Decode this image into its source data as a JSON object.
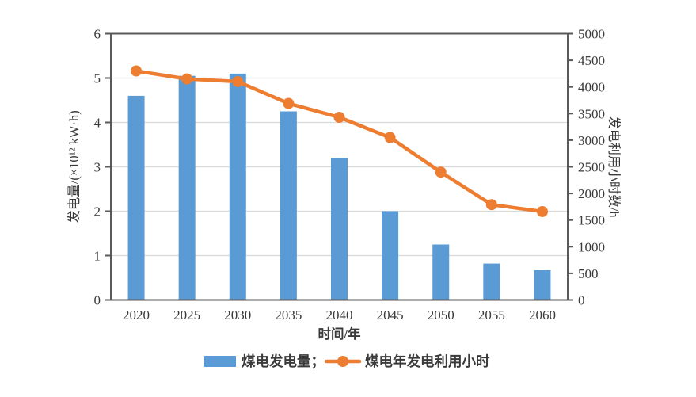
{
  "chart_data": {
    "type": "bar",
    "subtype": "bar+line combo, dual y-axes",
    "categories": [
      "2020",
      "2025",
      "2030",
      "2035",
      "2040",
      "2045",
      "2050",
      "2055",
      "2060"
    ],
    "series": [
      {
        "name": "煤电发电量",
        "legend_label": "煤电发电量；",
        "type": "bar",
        "axis": "left",
        "color": "#5B9BD5",
        "values": [
          4.6,
          5.05,
          5.1,
          4.25,
          3.2,
          2.0,
          1.25,
          0.82,
          0.67
        ]
      },
      {
        "name": "煤电年发电利用小时",
        "legend_label": "煤电年发电利用小时",
        "type": "line",
        "axis": "right",
        "color": "#ED7D31",
        "marker": "circle",
        "values": [
          4300,
          4150,
          4100,
          3690,
          3430,
          3050,
          2400,
          1790,
          1660
        ]
      }
    ],
    "xlabel": "时间/年",
    "ylabel_left": "发电量/(×10¹² kW·h)",
    "ylabel_right": "发电利用小时数/h",
    "ylim_left": [
      0,
      6
    ],
    "yticks_left": [
      "0",
      "1",
      "2",
      "3",
      "4",
      "5",
      "6"
    ],
    "ylim_right": [
      0,
      5000
    ],
    "yticks_right": [
      "0",
      "500",
      "1000",
      "1500",
      "2000",
      "2500",
      "3000",
      "3500",
      "4000",
      "4500",
      "5000"
    ],
    "grid": "horizontal gridlines at left-axis integers 1-5",
    "legend_position": "bottom-center"
  },
  "colors": {
    "bar": "#5B9BD5",
    "line": "#ED7D31",
    "frame": "#595959",
    "gridline": "#d9d9d9",
    "text": "#3a3a3a",
    "background": "#ffffff"
  }
}
